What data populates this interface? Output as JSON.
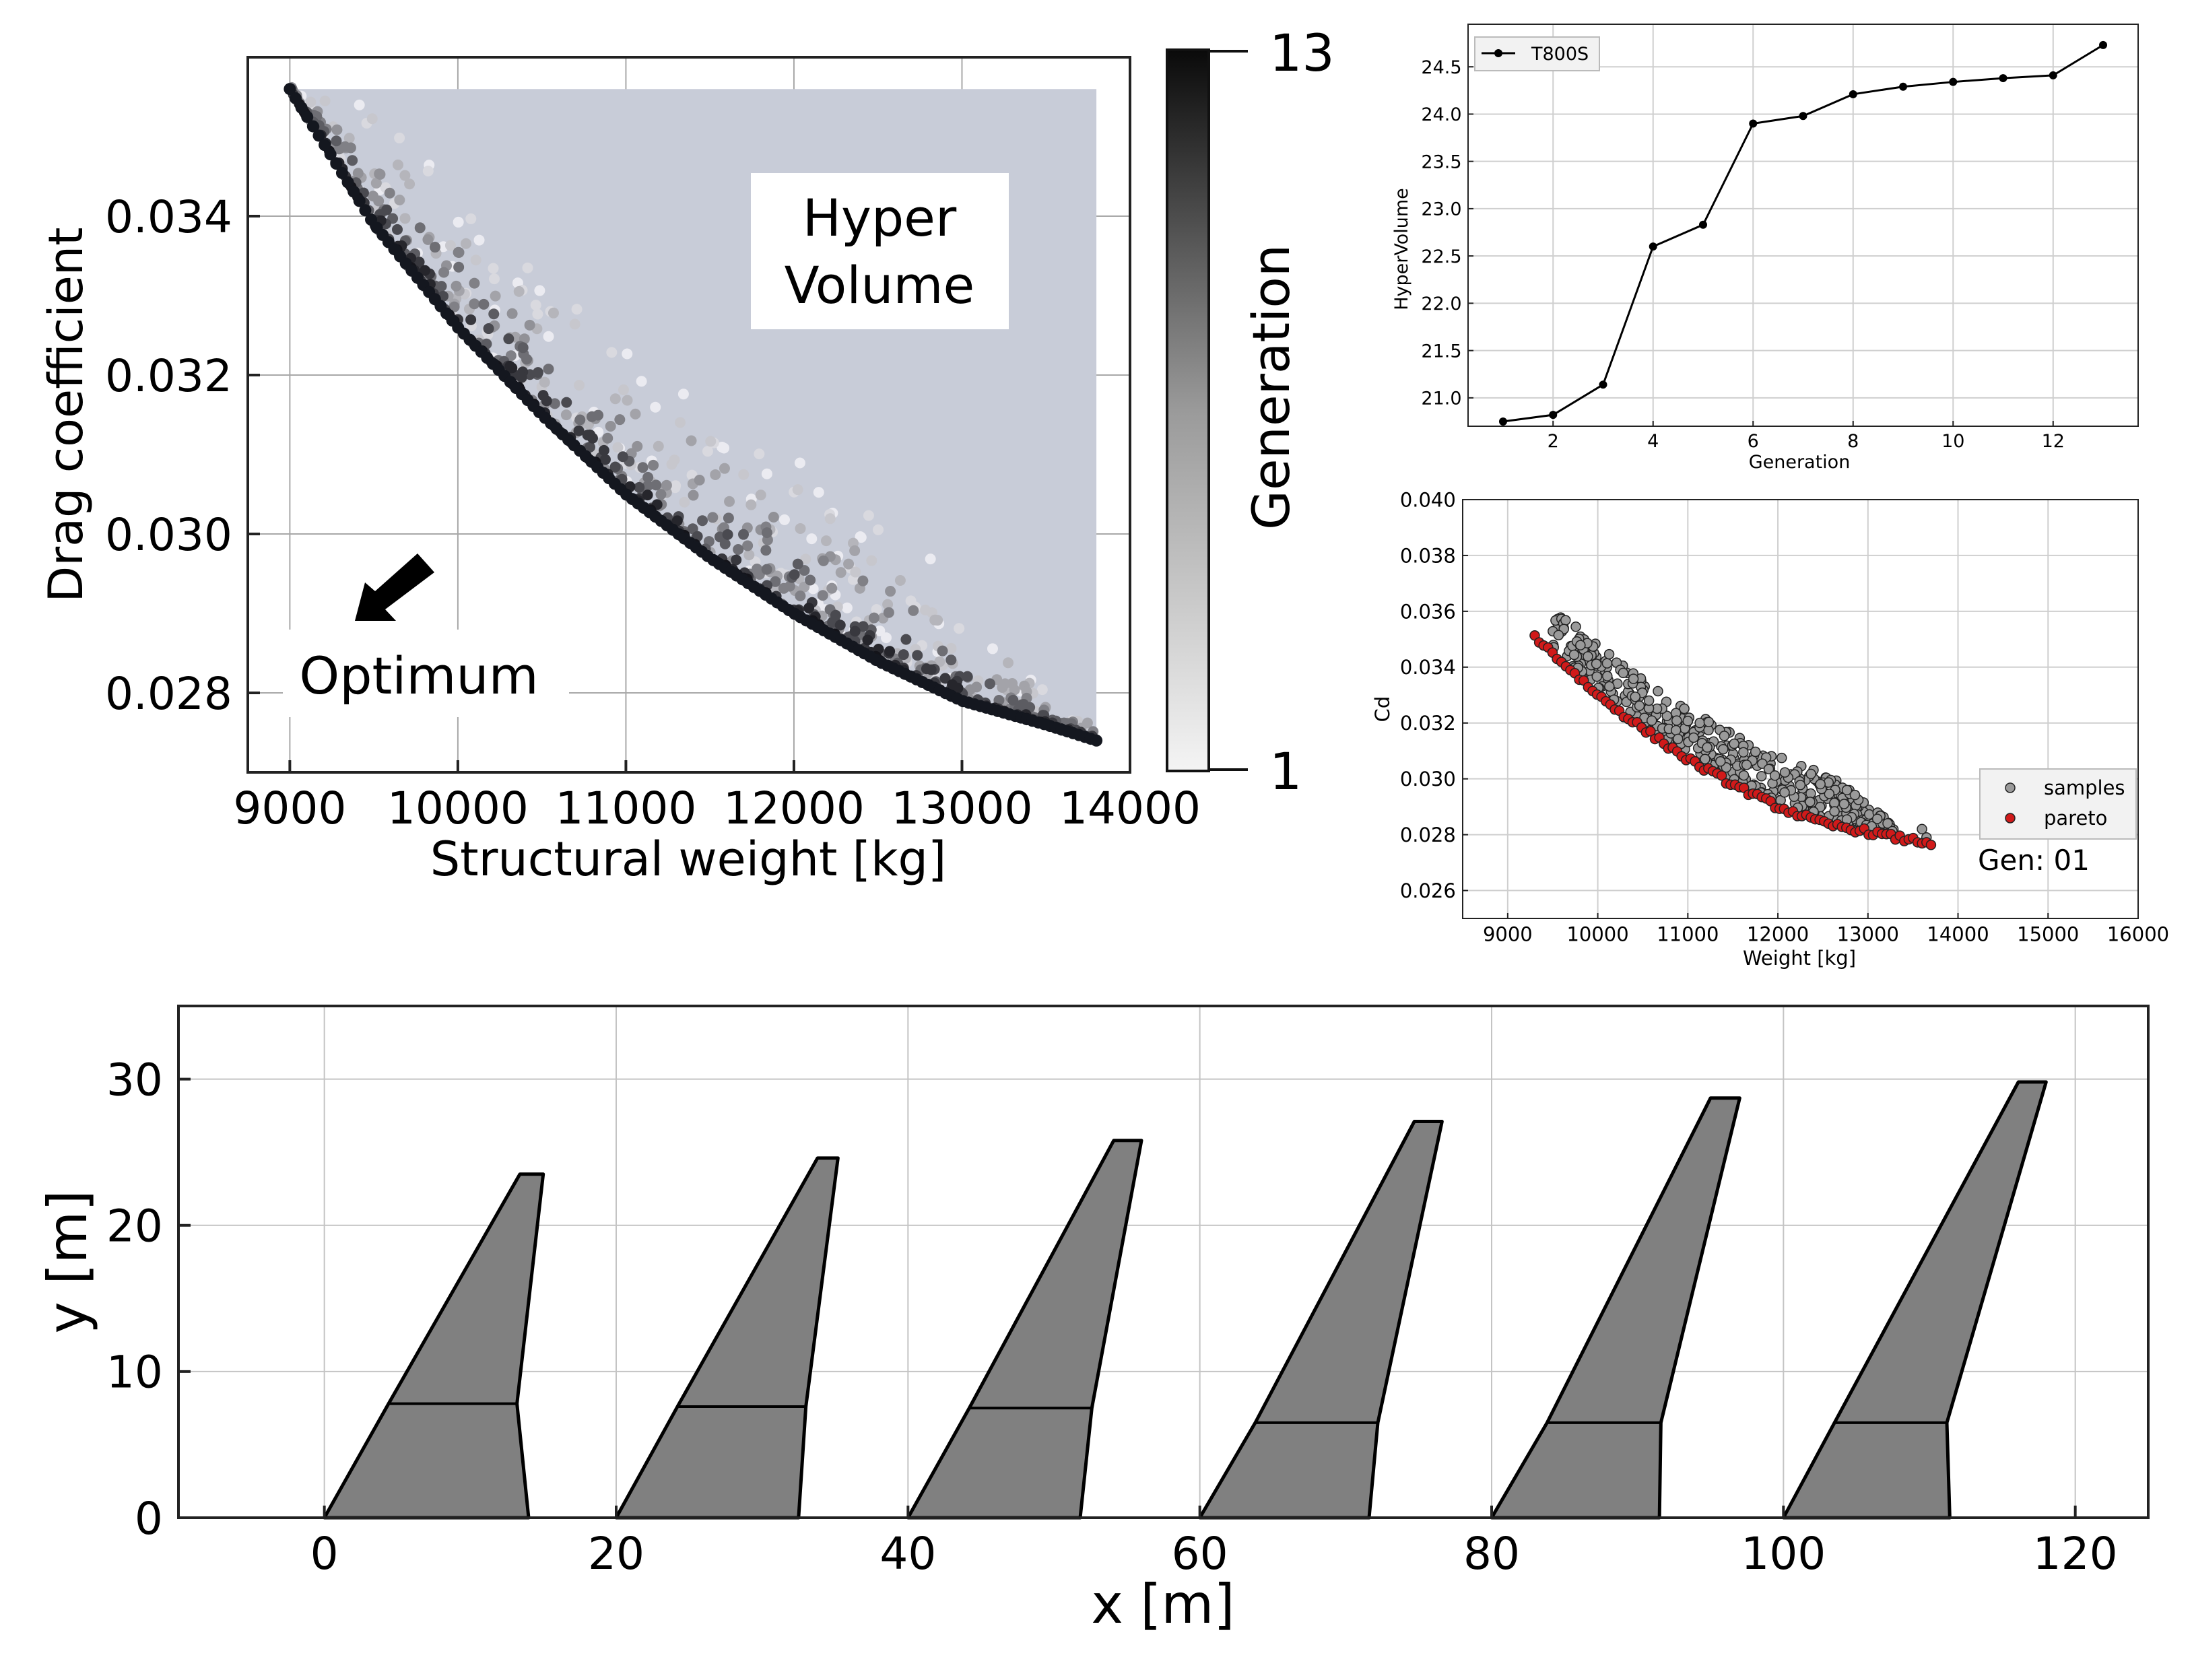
{
  "chart_data": [
    {
      "id": "pareto_scatter",
      "type": "scatter",
      "xlabel": "Structural weight [kg]",
      "ylabel": "Drag coefficient",
      "xlim": [
        8750,
        14000
      ],
      "ylim": [
        0.027,
        0.036
      ],
      "xticks": [
        9000,
        10000,
        11000,
        12000,
        13000,
        14000
      ],
      "yticks": [
        0.028,
        0.03,
        0.032,
        0.034
      ],
      "xtick_labels": [
        "9000",
        "10000",
        "11000",
        "12000",
        "13000",
        "14000"
      ],
      "ytick_labels": [
        "0.028",
        "0.030",
        "0.032",
        "0.034"
      ],
      "grid": true,
      "front": {
        "x": [
          9000,
          9500,
          10000,
          10500,
          11000,
          11500,
          12000,
          12500,
          13000,
          13500,
          13800
        ],
        "y": [
          0.0356,
          0.0339,
          0.0326,
          0.0315,
          0.0305,
          0.0297,
          0.029,
          0.0284,
          0.0279,
          0.0276,
          0.0274
        ]
      },
      "points_per_generation": 70,
      "hypervolume_region": {
        "x": [
          9000,
          13800
        ],
        "y": [
          0.0274,
          0.0356
        ]
      },
      "colorbar": {
        "label": "Generation",
        "min": 1,
        "max": 13,
        "min_label": "1",
        "max_label": "13"
      },
      "annotations": {
        "hypervolume_line1": "Hyper",
        "hypervolume_line2": "Volume",
        "optimum": "Optimum"
      }
    },
    {
      "id": "hypervolume_history",
      "type": "line",
      "xlabel": "Generation",
      "ylabel": "HyperVolume",
      "x": [
        1,
        2,
        3,
        4,
        5,
        6,
        7,
        8,
        9,
        10,
        11,
        12,
        13
      ],
      "series": [
        {
          "name": "T800S",
          "values": [
            20.75,
            20.82,
            21.14,
            22.6,
            22.83,
            23.9,
            23.98,
            24.21,
            24.29,
            24.34,
            24.38,
            24.41,
            24.73
          ]
        }
      ],
      "xlim": [
        0.3,
        13.7
      ],
      "ylim": [
        20.7,
        24.95
      ],
      "xticks": [
        2,
        4,
        6,
        8,
        10,
        12
      ],
      "yticks": [
        21.0,
        21.5,
        22.0,
        22.5,
        23.0,
        23.5,
        24.0,
        24.5
      ],
      "xtick_labels": [
        "2",
        "4",
        "6",
        "8",
        "10",
        "12"
      ],
      "ytick_labels": [
        "21.0",
        "21.5",
        "22.0",
        "22.5",
        "23.0",
        "23.5",
        "24.0",
        "24.5"
      ],
      "grid": true,
      "legend": "top-left"
    },
    {
      "id": "generation_scatter",
      "type": "scatter",
      "xlabel": "Weight [kg]",
      "ylabel": "Cd",
      "xlim": [
        8500,
        16000
      ],
      "ylim": [
        0.025,
        0.04
      ],
      "xticks": [
        9000,
        10000,
        11000,
        12000,
        13000,
        14000,
        15000,
        16000
      ],
      "yticks": [
        0.026,
        0.028,
        0.03,
        0.032,
        0.034,
        0.036,
        0.038,
        0.04
      ],
      "xtick_labels": [
        "9000",
        "10000",
        "11000",
        "12000",
        "13000",
        "14000",
        "15000",
        "16000"
      ],
      "ytick_labels": [
        "0.026",
        "0.028",
        "0.030",
        "0.032",
        "0.034",
        "0.036",
        "0.038",
        "0.040"
      ],
      "grid": true,
      "series": [
        {
          "name": "samples",
          "color": "#9a9a9a",
          "count": 420
        },
        {
          "name": "pareto",
          "color": "#d11a1a",
          "count": 90
        }
      ],
      "pareto_front": {
        "x": [
          9300,
          9500,
          10000,
          10500,
          11000,
          11500,
          12000,
          12500,
          13000,
          13300,
          13700
        ],
        "y": [
          0.0351,
          0.0345,
          0.033,
          0.0318,
          0.0307,
          0.0298,
          0.029,
          0.0284,
          0.0281,
          0.0279,
          0.0277
        ]
      },
      "legend": "bottom-right",
      "annotation": "Gen: 01"
    },
    {
      "id": "wing_planforms",
      "type": "line",
      "xlabel": "x [m]",
      "ylabel": "y [m]",
      "xlim": [
        -10,
        125
      ],
      "ylim": [
        0,
        35
      ],
      "xticks": [
        0,
        20,
        40,
        60,
        80,
        100,
        120
      ],
      "yticks": [
        0,
        10,
        20,
        30
      ],
      "xtick_labels": [
        "0",
        "20",
        "40",
        "60",
        "80",
        "100",
        "120"
      ],
      "ytick_labels": [
        "0",
        "10",
        "20",
        "30"
      ],
      "grid": true,
      "fill_color": "#808080",
      "wings": [
        {
          "offset": 0,
          "root_te": 14.0,
          "kink_y": 7.8,
          "kink_le": 4.4,
          "kink_te": 13.2,
          "tip_y": 23.5,
          "tip_le": 13.4,
          "tip_te": 15.0
        },
        {
          "offset": 20,
          "root_te": 12.5,
          "kink_y": 7.6,
          "kink_le": 4.2,
          "kink_te": 13.0,
          "tip_y": 24.6,
          "tip_le": 13.8,
          "tip_te": 15.2
        },
        {
          "offset": 40,
          "root_te": 11.8,
          "kink_y": 7.5,
          "kink_le": 4.2,
          "kink_te": 12.6,
          "tip_y": 25.8,
          "tip_le": 14.1,
          "tip_te": 16.0
        },
        {
          "offset": 60,
          "root_te": 11.6,
          "kink_y": 6.5,
          "kink_le": 3.8,
          "kink_te": 12.2,
          "tip_y": 27.1,
          "tip_le": 14.7,
          "tip_te": 16.6
        },
        {
          "offset": 80,
          "root_te": 11.5,
          "kink_y": 6.5,
          "kink_le": 3.8,
          "kink_te": 11.6,
          "tip_y": 28.7,
          "tip_le": 15.0,
          "tip_te": 17.0
        },
        {
          "offset": 100,
          "root_te": 11.4,
          "kink_y": 6.5,
          "kink_le": 3.5,
          "kink_te": 11.2,
          "tip_y": 29.8,
          "tip_le": 16.1,
          "tip_te": 18.0
        }
      ]
    }
  ]
}
